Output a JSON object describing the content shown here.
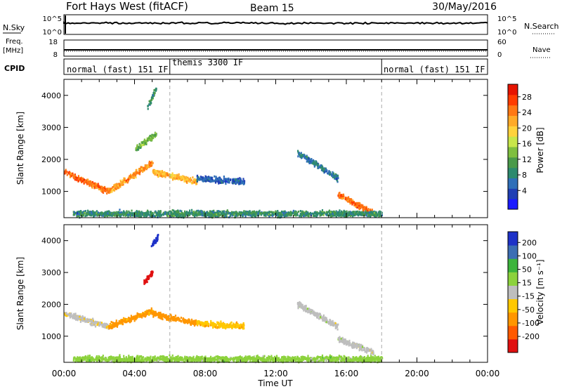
{
  "header": {
    "title": "Fort Hays West (fitACF)",
    "beam": "Beam 15",
    "date": "30/May/2016"
  },
  "top_panels": {
    "nsky_label": "N.Sky",
    "nsky_ticks": [
      "10^5",
      "10^0"
    ],
    "nsearch_label": "N.Search",
    "nsearch_ticks": [
      "10^5",
      "10^0"
    ],
    "freq_label_1": "Freq.",
    "freq_label_2": "[MHz]",
    "freq_ticks": [
      "18",
      "8"
    ],
    "nave_label": "Nave",
    "nave_ticks": [
      "60",
      "0"
    ],
    "cpid_label": "CPID",
    "cpid_segments": [
      {
        "label": "normal (fast) 151 IF",
        "start": 0,
        "end": 6
      },
      {
        "label": "themis 3300 IF",
        "start": 6,
        "end": 18
      },
      {
        "label": "normal (fast) 151 IF",
        "start": 18,
        "end": 24
      }
    ]
  },
  "axes": {
    "xlabel": "Time UT",
    "ylabel": "Slant Range [km]",
    "x_ticks": [
      "00:00",
      "04:00",
      "08:00",
      "12:00",
      "16:00",
      "20:00",
      "00:00"
    ],
    "y_ticks": [
      "1000",
      "2000",
      "3000",
      "4000"
    ]
  },
  "colorbars": {
    "power_label": "Power [dB]",
    "power_ticks": [
      "28",
      "24",
      "20",
      "16",
      "12",
      "8",
      "4"
    ],
    "power_colors": [
      "#1a1aff",
      "#1f3fb4",
      "#2f6fb8",
      "#2d8a6e",
      "#4a9a4a",
      "#7fbf3f",
      "#c8e64a",
      "#ffd23c",
      "#ffaa28",
      "#ff7814",
      "#ff3c00",
      "#e61400"
    ],
    "velocity_label": "Velocity [m s⁻¹]",
    "velocity_ticks": [
      "200",
      "100",
      "50",
      "15",
      "-15",
      "-50",
      "-100",
      "-200"
    ],
    "velocity_colors": [
      "#e01010",
      "#ff5a00",
      "#ff9600",
      "#ffc800",
      "#bebebe",
      "#8cd23c",
      "#3cb43c",
      "#3c6eb4",
      "#1e32c8"
    ]
  },
  "chart_data": [
    {
      "type": "heatmap",
      "title": "Power",
      "xlabel": "Time UT",
      "ylabel": "Slant Range [km]",
      "xlim": [
        0,
        24
      ],
      "ylim": [
        180,
        4500
      ],
      "colorbar_label": "Power [dB]",
      "clim": [
        0,
        32
      ],
      "features": [
        {
          "t0": 0.0,
          "t1": 2.5,
          "r0": 1600,
          "r1": 1000,
          "power": 26
        },
        {
          "t0": 2.5,
          "t1": 5.0,
          "r0": 1000,
          "r1": 1900,
          "power": 24
        },
        {
          "t0": 4.0,
          "t1": 5.2,
          "r0": 2300,
          "r1": 2800,
          "power": 14
        },
        {
          "t0": 4.7,
          "t1": 5.2,
          "r0": 3600,
          "r1": 4200,
          "power": 10
        },
        {
          "t0": 5.0,
          "t1": 7.5,
          "r0": 1600,
          "r1": 1300,
          "power": 22
        },
        {
          "t0": 7.5,
          "t1": 10.2,
          "r0": 1400,
          "r1": 1300,
          "power": 6
        },
        {
          "t0": 13.2,
          "t1": 15.5,
          "r0": 2200,
          "r1": 1400,
          "power": 8
        },
        {
          "t0": 15.5,
          "t1": 17.5,
          "r0": 900,
          "r1": 300,
          "power": 26
        },
        {
          "t0": 0.5,
          "t1": 18.0,
          "r0": 300,
          "r1": 300,
          "power": 10
        }
      ]
    },
    {
      "type": "heatmap",
      "title": "Velocity",
      "xlabel": "Time UT",
      "ylabel": "Slant Range [km]",
      "xlim": [
        0,
        24
      ],
      "ylim": [
        180,
        4500
      ],
      "colorbar_label": "Velocity [m s⁻¹]",
      "clim": [
        -250,
        250
      ],
      "features": [
        {
          "t0": 0.0,
          "t1": 2.5,
          "r0": 1700,
          "r1": 1300,
          "velocity": -5
        },
        {
          "t0": 2.5,
          "t1": 5.0,
          "r0": 1300,
          "r1": 1800,
          "velocity": -60
        },
        {
          "t0": 4.5,
          "t1": 5.0,
          "r0": 2700,
          "r1": 3000,
          "velocity": -220
        },
        {
          "t0": 4.9,
          "t1": 5.3,
          "r0": 3800,
          "r1": 4100,
          "velocity": 220
        },
        {
          "t0": 5.0,
          "t1": 7.5,
          "r0": 1700,
          "r1": 1400,
          "velocity": -70
        },
        {
          "t0": 7.5,
          "t1": 10.2,
          "r0": 1400,
          "r1": 1300,
          "velocity": -40
        },
        {
          "t0": 13.2,
          "t1": 15.5,
          "r0": 2000,
          "r1": 1300,
          "velocity": 0
        },
        {
          "t0": 15.5,
          "t1": 17.5,
          "r0": 900,
          "r1": 500,
          "velocity": 0
        },
        {
          "t0": 0.5,
          "t1": 18.0,
          "r0": 280,
          "r1": 280,
          "velocity": 30
        }
      ]
    }
  ]
}
